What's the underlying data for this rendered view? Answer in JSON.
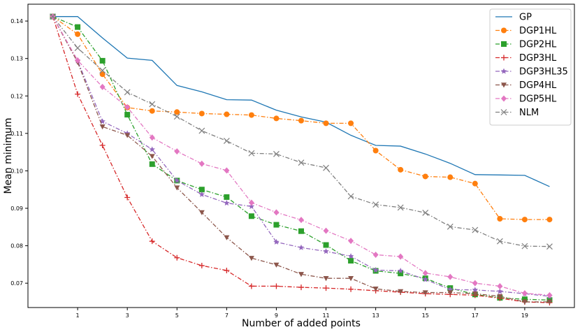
{
  "chart_data": {
    "type": "line",
    "title": "",
    "xlabel": "Number of added points",
    "ylabel": "Mean minimum",
    "xlim": [
      -1.0,
      21.0
    ],
    "ylim": [
      0.0635,
      0.1445
    ],
    "x": [
      0,
      1,
      2,
      3,
      4,
      5,
      6,
      7,
      8,
      9,
      10,
      11,
      12,
      13,
      14,
      15,
      16,
      17,
      18,
      19,
      20
    ],
    "xticks": [
      1,
      3,
      5,
      7,
      9,
      11,
      13,
      15,
      17,
      19
    ],
    "xtick_labels": [
      "1",
      "3",
      "5",
      "7",
      "9",
      "11",
      "13",
      "15",
      "17",
      "19"
    ],
    "yticks": [
      0.07,
      0.08,
      0.09,
      0.1,
      0.11,
      0.12,
      0.13,
      0.14
    ],
    "ytick_labels": [
      "0.07",
      "0.08",
      "0.09",
      "0.10",
      "0.11",
      "0.12",
      "0.13",
      "0.14"
    ],
    "legend_position": "top-right",
    "series": [
      {
        "name": "GP",
        "color": "#1f77b4",
        "dash": "solid",
        "marker": "none",
        "values": [
          0.1412,
          0.1412,
          0.1355,
          0.1301,
          0.1295,
          0.1228,
          0.1211,
          0.119,
          0.1189,
          0.1162,
          0.1144,
          0.113,
          0.1095,
          0.1068,
          0.1066,
          0.1045,
          0.102,
          0.099,
          0.0989,
          0.0988,
          0.0958
        ]
      },
      {
        "name": "DGP1HL",
        "color": "#ff7f0e",
        "dash": "dashdot",
        "marker": "circle",
        "values": [
          0.1412,
          0.1365,
          0.1258,
          0.1169,
          0.116,
          0.1157,
          0.1153,
          0.1151,
          0.1149,
          0.114,
          0.1134,
          0.1127,
          0.1127,
          0.1054,
          0.1003,
          0.0985,
          0.0983,
          0.0966,
          0.0872,
          0.087,
          0.087
        ]
      },
      {
        "name": "DGP2HL",
        "color": "#2ca02c",
        "dash": "dashdot",
        "marker": "square",
        "values": [
          0.1412,
          0.1384,
          0.1294,
          0.115,
          0.1018,
          0.0974,
          0.095,
          0.093,
          0.0879,
          0.0856,
          0.0839,
          0.0802,
          0.076,
          0.0733,
          0.0726,
          0.0713,
          0.0687,
          0.067,
          0.0661,
          0.0657,
          0.0655
        ]
      },
      {
        "name": "DGP3HL",
        "color": "#d62728",
        "dash": "dashdot",
        "marker": "plus",
        "values": [
          0.1412,
          0.1205,
          0.1068,
          0.0929,
          0.0812,
          0.0768,
          0.0747,
          0.0734,
          0.0692,
          0.0692,
          0.0689,
          0.0687,
          0.0684,
          0.068,
          0.0676,
          0.0672,
          0.067,
          0.0668,
          0.066,
          0.065,
          0.0648
        ]
      },
      {
        "name": "DGP3HL35",
        "color": "#9467bd",
        "dash": "dashdot",
        "marker": "star",
        "values": [
          0.1412,
          0.1294,
          0.1132,
          0.11,
          0.1057,
          0.0974,
          0.0937,
          0.0914,
          0.0905,
          0.081,
          0.0795,
          0.0785,
          0.0772,
          0.0735,
          0.0733,
          0.071,
          0.0683,
          0.0682,
          0.0678,
          0.0672,
          0.0665
        ]
      },
      {
        "name": "DGP4HL",
        "color": "#8c564b",
        "dash": "dashdot",
        "marker": "triangle-down",
        "values": [
          0.1412,
          0.129,
          0.1118,
          0.1095,
          0.1039,
          0.0955,
          0.0889,
          0.0822,
          0.0767,
          0.0749,
          0.0724,
          0.0713,
          0.0713,
          0.0685,
          0.0678,
          0.0675,
          0.0675,
          0.0672,
          0.0665,
          0.065,
          0.065
        ]
      },
      {
        "name": "DGP5HL",
        "color": "#e377c2",
        "dash": "dashdot",
        "marker": "diamond",
        "values": [
          0.1412,
          0.1295,
          0.1224,
          0.117,
          0.1089,
          0.1052,
          0.1019,
          0.1001,
          0.0915,
          0.0889,
          0.0869,
          0.084,
          0.0813,
          0.0776,
          0.0771,
          0.0727,
          0.0717,
          0.07,
          0.0692,
          0.0673,
          0.0668
        ]
      },
      {
        "name": "NLM",
        "color": "#7f7f7f",
        "dash": "dashdot",
        "marker": "x",
        "values": [
          0.1412,
          0.1328,
          0.1268,
          0.121,
          0.1178,
          0.1145,
          0.1107,
          0.108,
          0.1047,
          0.1045,
          0.1022,
          0.1008,
          0.0932,
          0.091,
          0.0902,
          0.0888,
          0.0851,
          0.0842,
          0.0812,
          0.0799,
          0.0798
        ]
      }
    ]
  }
}
